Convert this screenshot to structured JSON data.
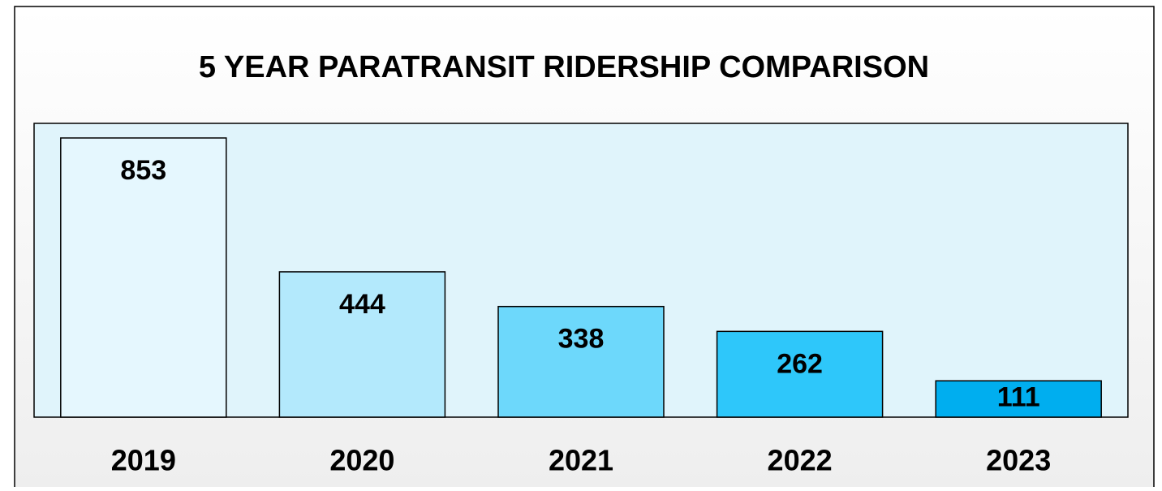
{
  "chart_data": {
    "type": "bar",
    "title": "5 YEAR PARATRANSIT RIDERSHIP COMPARISON",
    "categories": [
      "2019",
      "2020",
      "2021",
      "2022",
      "2023"
    ],
    "values": [
      853,
      444,
      338,
      262,
      111
    ],
    "colors": [
      "#e5f7fe",
      "#b3e9fc",
      "#6dd8fb",
      "#2ec7fa",
      "#00aeef"
    ]
  }
}
